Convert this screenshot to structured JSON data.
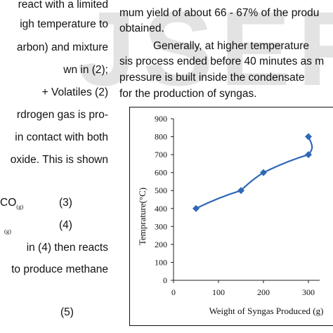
{
  "watermark": "JSER",
  "left_column": {
    "lines": [
      "react with a limited",
      "igh temperature to",
      "arbon) and mixture",
      "wn in (2);",
      "+ Volatiles    (2)",
      "rdrogen gas is pro-",
      "in contact with both",
      "oxide. This is shown",
      "in  (4)  then  reacts",
      "to produce methane"
    ],
    "eq3": {
      "text": "CO",
      "sub": "(g)",
      "number": "(3)"
    },
    "eq4": {
      "sub": "(g)",
      "number": "(4)"
    },
    "eq5": {
      "number": "(5)"
    }
  },
  "right_column": {
    "lines": [
      "mum yield of about 66 - 67% of the produ",
      "obtained.",
      "Generally, at higher temperature",
      "sis process ended before 40 minutes as m",
      "pressure is built inside the condensate",
      "for the production of syngas."
    ]
  },
  "chart_data": {
    "type": "line",
    "title": "",
    "xlabel": "Weight of Syngas Produced (g)",
    "ylabel": "Temprature(°C)",
    "xlim": [
      0,
      300
    ],
    "ylim": [
      0,
      900
    ],
    "xticks": [
      "0",
      "100",
      "200",
      "300"
    ],
    "yticks": [
      "0",
      "100",
      "200",
      "300",
      "400",
      "500",
      "600",
      "700",
      "800",
      "900"
    ],
    "grid": false,
    "series": [
      {
        "color": "#2f68b8",
        "marker": "diamond",
        "points": [
          {
            "x": 50,
            "y": 400
          },
          {
            "x": 150,
            "y": 500
          },
          {
            "x": 200,
            "y": 600
          },
          {
            "x": 300,
            "y": 700
          },
          {
            "x": 300,
            "y": 800
          }
        ]
      }
    ]
  }
}
